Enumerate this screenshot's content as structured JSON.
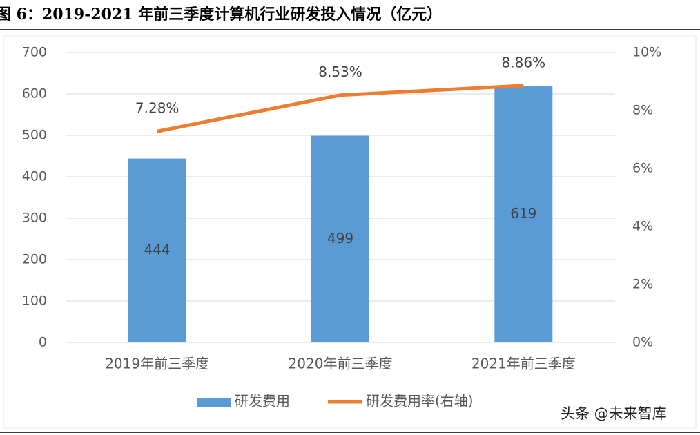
{
  "chart_data": {
    "type": "bar",
    "title": "图 6：2019-2021 年前三季度计算机行业研发投入情况（亿元）",
    "categories": [
      "2019年前三季度",
      "2020年前三季度",
      "2021年前三季度"
    ],
    "series": [
      {
        "name": "研发费用",
        "type": "bar",
        "color": "#5b9bd5",
        "values": [
          444,
          499,
          619
        ]
      },
      {
        "name": "研发费用率(右轴)",
        "type": "line",
        "axis": "y2",
        "color": "#ed7d31",
        "values": [
          7.28,
          8.53,
          8.86
        ],
        "value_labels": [
          "7.28%",
          "8.53%",
          "8.86%"
        ]
      }
    ],
    "ylim": [
      0,
      700
    ],
    "yticks": [
      0,
      100,
      200,
      300,
      400,
      500,
      600,
      700
    ],
    "y2lim": [
      0,
      10
    ],
    "y2ticks": [
      {
        "value": 0,
        "label": "0%"
      },
      {
        "value": 2,
        "label": "2%"
      },
      {
        "value": 4,
        "label": "4%"
      },
      {
        "value": 6,
        "label": "6%"
      },
      {
        "value": 8,
        "label": "8%"
      },
      {
        "value": 10,
        "label": "10%"
      }
    ],
    "grid": true,
    "legend": "bottom",
    "watermark": "头条 @未来智库"
  }
}
